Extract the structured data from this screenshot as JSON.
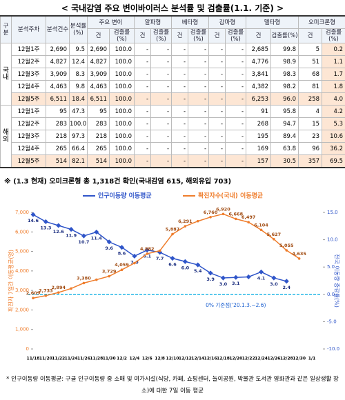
{
  "title": "< 국내감염 주요 변이바이러스 분석률 및 검출률(1.1. 기준) >",
  "table": {
    "header_top": [
      "구분",
      "분석주차",
      "분석건수",
      "분석률(%)",
      "주요 변이",
      "알파형",
      "베타형",
      "감마형",
      "델타형",
      "오미크론형"
    ],
    "header_sub": [
      "건",
      "검출률(%)"
    ],
    "groups": [
      {
        "name": "국내",
        "rows": [
          [
            "12월1주",
            "2,690",
            "9.5",
            "2,690",
            "100.0",
            "-",
            "-",
            "-",
            "-",
            "-",
            "-",
            "2,685",
            "99.8",
            "5",
            "0.2"
          ],
          [
            "12월2주",
            "4,827",
            "12.4",
            "4,827",
            "100.0",
            "-",
            "-",
            "-",
            "-",
            "-",
            "-",
            "4,776",
            "98.9",
            "51",
            "1.1"
          ],
          [
            "12월3주",
            "3,909",
            "8.3",
            "3,909",
            "100.0",
            "-",
            "-",
            "-",
            "-",
            "-",
            "-",
            "3,841",
            "98.3",
            "68",
            "1.7"
          ],
          [
            "12월4주",
            "4,463",
            "9.8",
            "4,463",
            "100.0",
            "-",
            "-",
            "-",
            "-",
            "-",
            "-",
            "4,382",
            "98.2",
            "81",
            "1.8"
          ],
          [
            "12월5주",
            "6,511",
            "18.4",
            "6,511",
            "100.0",
            "-",
            "-",
            "-",
            "-",
            "-",
            "-",
            "6,253",
            "96.0",
            "258",
            "4.0"
          ]
        ]
      },
      {
        "name": "해외",
        "rows": [
          [
            "12월1주",
            "95",
            "47.3",
            "95",
            "100.0",
            "-",
            "-",
            "-",
            "-",
            "-",
            "-",
            "91",
            "95.8",
            "4",
            "4.2"
          ],
          [
            "12월2주",
            "283",
            "100.0",
            "283",
            "100.0",
            "-",
            "-",
            "-",
            "-",
            "-",
            "-",
            "268",
            "94.7",
            "15",
            "5.3"
          ],
          [
            "12월3주",
            "218",
            "97.3",
            "218",
            "100.0",
            "-",
            "-",
            "-",
            "-",
            "-",
            "-",
            "195",
            "89.4",
            "23",
            "10.6"
          ],
          [
            "12월4주",
            "265",
            "66.4",
            "265",
            "100.0",
            "-",
            "-",
            "-",
            "-",
            "-",
            "-",
            "169",
            "63.8",
            "96",
            "36.2"
          ],
          [
            "12월5주",
            "514",
            "82.1",
            "514",
            "100.0",
            "-",
            "-",
            "-",
            "-",
            "-",
            "-",
            "157",
            "30.5",
            "357",
            "69.5"
          ]
        ]
      }
    ]
  },
  "note": "※ (1.3 현재) 오미크론형 총 1,318건 확인(국내감염 615, 해외유입 703)",
  "chart_data": {
    "type": "line",
    "categories": [
      "11/18",
      "11/20",
      "11/22",
      "11/24",
      "11/26",
      "11/28",
      "11/30",
      "12/2",
      "12/4",
      "12/6",
      "12/8",
      "12/10",
      "12/12",
      "12/14",
      "12/16",
      "12/18",
      "12/20",
      "12/22",
      "12/24",
      "12/26",
      "12/28",
      "12/30",
      "1/1"
    ],
    "series": [
      {
        "name": "인구이동량 이동평균",
        "color": "#2f55c9",
        "axis": "y2",
        "values": [
          14.6,
          13.3,
          12.6,
          11.9,
          10.7,
          11.4,
          9.6,
          8.6,
          7.0,
          8.1,
          7.7,
          6.6,
          6.0,
          5.4,
          3.9,
          3.0,
          3.1,
          3.2,
          4.1,
          3.0,
          2.4,
          null,
          null
        ],
        "value_labels": [
          "14.6",
          "13.3",
          "12.6",
          "11.9",
          "10.7",
          "11.4",
          "9.6",
          "8.6",
          "7.0",
          "8.1",
          "7.7",
          "6.6",
          "6.0",
          "5.4",
          "3.9",
          "3.0",
          "3.1",
          null,
          "4.1",
          "3.0",
          "2.4",
          null,
          null
        ]
      },
      {
        "name": "확진자수(국내) 이동평균",
        "color": "#ef7d2c",
        "values": [
          2609,
          2733,
          2894,
          3100,
          3380,
          3550,
          3729,
          4059,
          4400,
          4882,
          5037,
          5887,
          6291,
          6550,
          6760,
          6920,
          6668,
          6497,
          6104,
          5627,
          5055,
          4635,
          null
        ],
        "value_labels": [
          "2,609",
          "2,733",
          "2,894",
          null,
          "3,380",
          null,
          "3,729",
          "4,059",
          null,
          "4,882",
          null,
          "5,887",
          "6,291",
          null,
          "6,760",
          "6,920",
          "6,668",
          "6,497",
          "6,104",
          "5,627",
          "5,055",
          "4,635",
          null
        ]
      }
    ],
    "ylim": [
      0,
      7000
    ],
    "yticks": [
      0,
      {
        "value": 1000,
        "label": "1,000"
      },
      {
        "value": 2000,
        "label": "2,000"
      },
      {
        "value": 3000,
        "label": "3,000"
      },
      {
        "value": 4000,
        "label": "4,000"
      },
      {
        "value": 5000,
        "label": "5,000"
      },
      {
        "value": 6000,
        "label": "6,000"
      },
      {
        "value": 7000,
        "label": "7,000"
      }
    ],
    "y2lim": [
      -10,
      15
    ],
    "y2ticks": [
      {
        "value": -10,
        "label": "-10.0"
      },
      {
        "value": -5,
        "label": "-5.0"
      },
      {
        "value": 0,
        "label": "0.0"
      },
      {
        "value": 5,
        "label": "5.0"
      },
      {
        "value": 10,
        "label": "10.0"
      },
      {
        "value": 15,
        "label": "15.0"
      }
    ],
    "ylabel": "확진자 7일간 이동평균(명)",
    "y2label": "전국 이동량 증감률(%)",
    "reference_line": {
      "value": 0,
      "axis": "y2",
      "label": "0% 기준점('20.1.3.~2.6)",
      "color": "#20b6e6"
    },
    "legend": "top"
  },
  "footnote": "* 인구이동량 이동평균: 구글 인구이동량 중 소매 및 여가시설(식당, 카페, 쇼핑센터, 놀이공원, 박물관 도서관 영화관과 같은 일상생활 장소)에 대한 7일 이동 평균"
}
